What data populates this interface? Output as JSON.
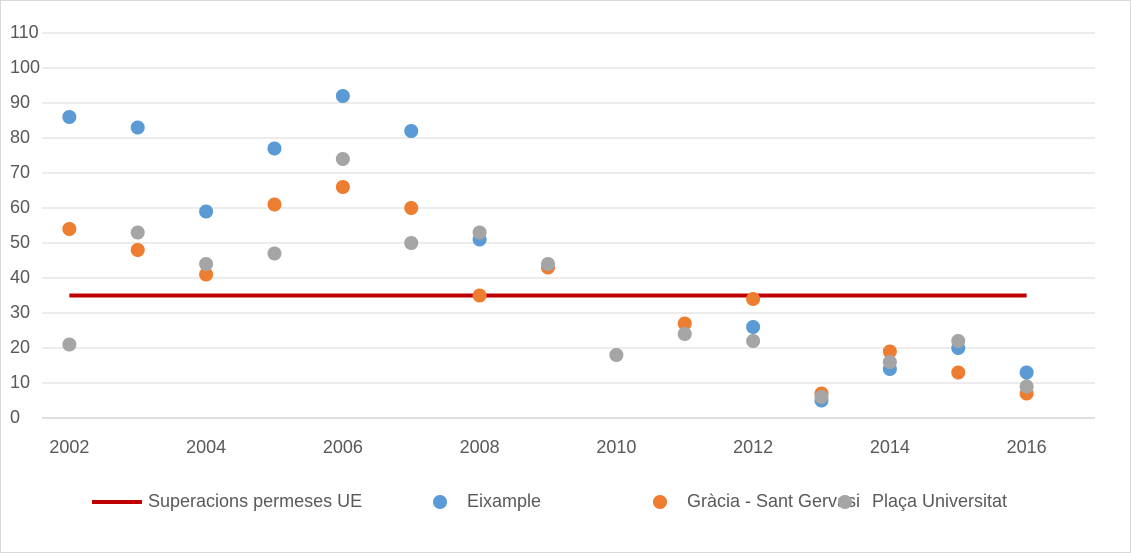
{
  "chart_data": {
    "type": "scatter",
    "x": [
      2002,
      2003,
      2004,
      2005,
      2006,
      2007,
      2008,
      2009,
      2010,
      2011,
      2012,
      2013,
      2014,
      2015,
      2016
    ],
    "series": [
      {
        "name": "Superacions permeses UE",
        "type": "line",
        "color": "#c00000",
        "x": [
          2002,
          2016
        ],
        "values": [
          35,
          35
        ]
      },
      {
        "name": "Eixample",
        "color": "#5b9bd5",
        "values": [
          86,
          83,
          59,
          77,
          92,
          82,
          51,
          null,
          null,
          null,
          26,
          5,
          14,
          20,
          13
        ]
      },
      {
        "name": "Gràcia - Sant Gervasi",
        "color": "#ed7d31",
        "values": [
          54,
          48,
          41,
          61,
          66,
          60,
          35,
          43,
          null,
          27,
          34,
          7,
          19,
          13,
          7
        ]
      },
      {
        "name": "Plaça Universitat",
        "color": "#a5a5a5",
        "values": [
          21,
          53,
          44,
          47,
          74,
          50,
          53,
          44,
          18,
          24,
          22,
          6,
          16,
          22,
          9
        ]
      }
    ],
    "xlim": [
      2001.6,
      2017
    ],
    "xticks": [
      2002,
      2004,
      2006,
      2008,
      2010,
      2012,
      2014,
      2016
    ],
    "ylim": [
      0,
      110
    ],
    "yticks": [
      0,
      10,
      20,
      30,
      40,
      50,
      60,
      70,
      80,
      90,
      100,
      110
    ],
    "grid": true,
    "legend": "bottom"
  }
}
